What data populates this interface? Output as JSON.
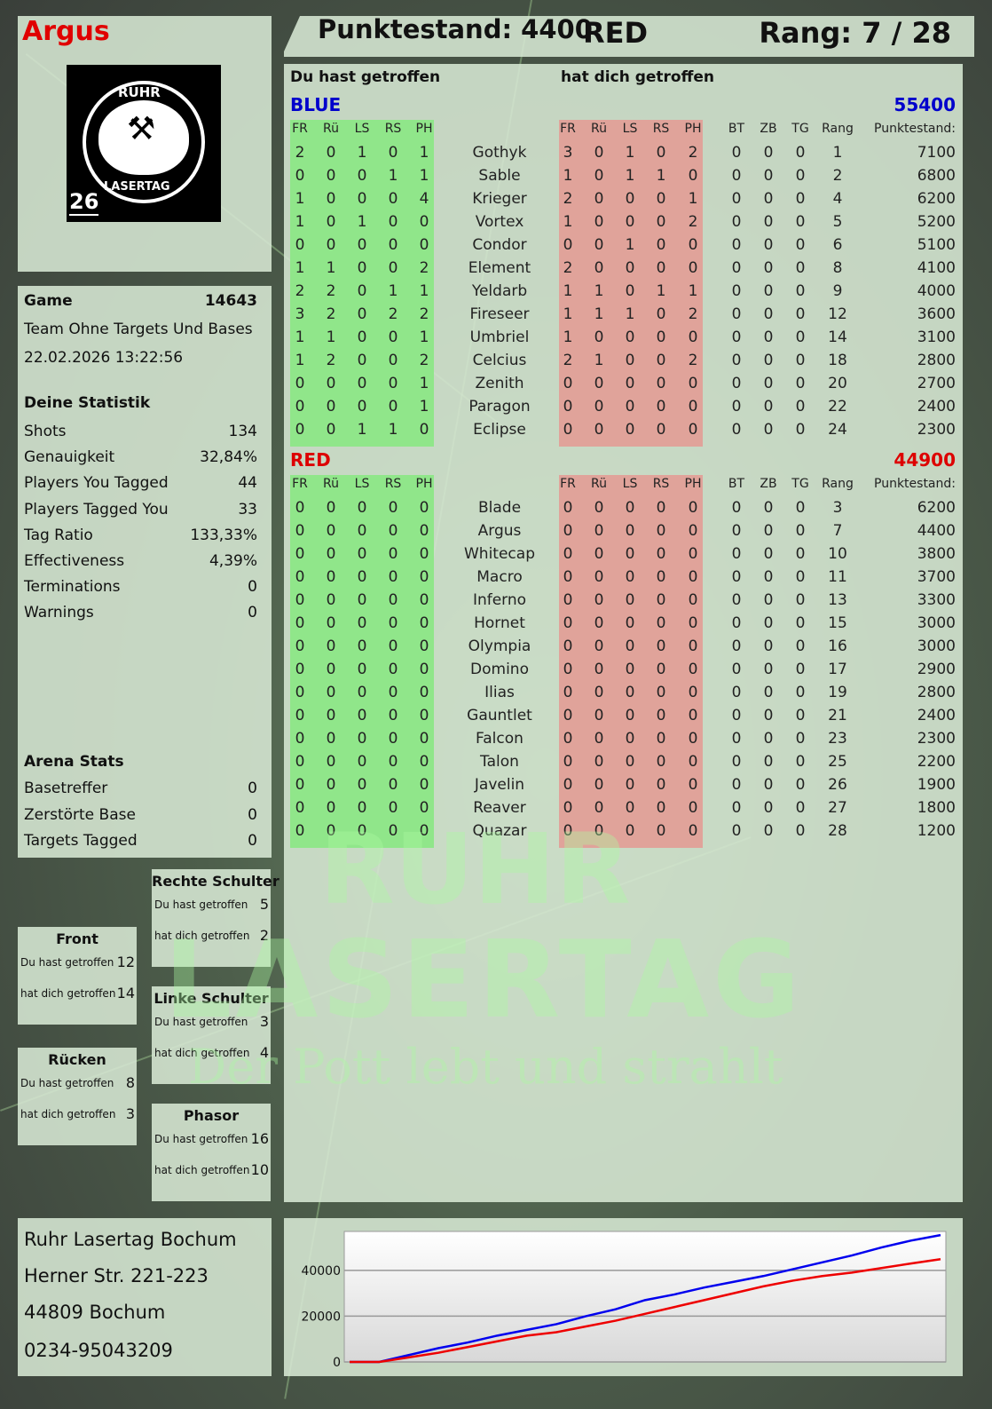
{
  "header": {
    "player_name": "Argus",
    "score_label": "Punktestand: 4400",
    "team": "RED",
    "rank_label": "Rang: 7 / 28"
  },
  "logo": {
    "text_top": "RUHR",
    "text_bottom": "LASERTAG",
    "number": "26"
  },
  "watermark": {
    "line1": "RUHR",
    "line2": "LASERTAG",
    "line3": "Der Pott lebt und strahlt"
  },
  "game": {
    "label": "Game",
    "id": "14643",
    "mode": "Team Ohne Targets Und Bases",
    "datetime": "22.02.2026 13:22:56"
  },
  "stats": {
    "title": "Deine Statistik",
    "items": [
      {
        "label": "Shots",
        "value": "134"
      },
      {
        "label": "Genauigkeit",
        "value": "32,84%"
      },
      {
        "label": "Players You Tagged",
        "value": "44"
      },
      {
        "label": "Players Tagged You",
        "value": "33"
      },
      {
        "label": "Tag Ratio",
        "value": "133,33%"
      },
      {
        "label": "Effectiveness",
        "value": "4,39%"
      },
      {
        "label": "Terminations",
        "value": "0"
      },
      {
        "label": "Warnings",
        "value": "0"
      }
    ]
  },
  "arena": {
    "title": "Arena Stats",
    "items": [
      {
        "label": "Basetreffer",
        "value": "0"
      },
      {
        "label": "Zerstörte Base",
        "value": "0"
      },
      {
        "label": "Targets Tagged",
        "value": "0"
      }
    ]
  },
  "hitzones": [
    {
      "title": "Rechte Schulter",
      "you_hit_label": "Du hast getroffen",
      "you_hit": "5",
      "hit_you_label": "hat dich getroffen",
      "hit_you": "2"
    },
    {
      "title": "Front",
      "you_hit_label": "Du hast getroffen",
      "you_hit": "12",
      "hit_you_label": "hat dich getroffen",
      "hit_you": "14"
    },
    {
      "title": "Linke Schulter",
      "you_hit_label": "Du hast getroffen",
      "you_hit": "3",
      "hit_you_label": "hat dich getroffen",
      "hit_you": "4"
    },
    {
      "title": "Rücken",
      "you_hit_label": "Du hast getroffen",
      "you_hit": "8",
      "hit_you_label": "hat dich getroffen",
      "hit_you": "3"
    },
    {
      "title": "Phasor",
      "you_hit_label": "Du hast getroffen",
      "you_hit": "16",
      "hit_you_label": "hat dich getroffen",
      "hit_you": "10"
    }
  ],
  "address": {
    "line1": "Ruhr Lasertag Bochum",
    "line2": "Herner Str. 221-223",
    "line3": "44809 Bochum",
    "line4": "0234-95043209"
  },
  "main": {
    "you_hit_header": "Du hast getroffen",
    "hit_you_header": "hat dich getroffen",
    "columns": {
      "hit": [
        "FR",
        "Rü",
        "LS",
        "RS",
        "PH"
      ],
      "extra": [
        "BT",
        "ZB",
        "TG",
        "Rang",
        "Punktestand:"
      ]
    },
    "colors": {
      "blue": "#0000cc",
      "red": "#dd0000",
      "you_hit_bg": "#90e68a",
      "hit_you_bg": "#e0a39a"
    },
    "teams": [
      {
        "name": "BLUE",
        "score": "55400",
        "color": "#0000cc",
        "players": [
          {
            "name": "Gothyk",
            "you_hit": [
              2,
              0,
              1,
              0,
              1
            ],
            "hit_you": [
              3,
              0,
              1,
              0,
              2
            ],
            "bt": 0,
            "zb": 0,
            "tg": 0,
            "rank": 1,
            "score": 7100
          },
          {
            "name": "Sable",
            "you_hit": [
              0,
              0,
              0,
              1,
              1
            ],
            "hit_you": [
              1,
              0,
              1,
              1,
              0
            ],
            "bt": 0,
            "zb": 0,
            "tg": 0,
            "rank": 2,
            "score": 6800
          },
          {
            "name": "Krieger",
            "you_hit": [
              1,
              0,
              0,
              0,
              4
            ],
            "hit_you": [
              2,
              0,
              0,
              0,
              1
            ],
            "bt": 0,
            "zb": 0,
            "tg": 0,
            "rank": 4,
            "score": 6200
          },
          {
            "name": "Vortex",
            "you_hit": [
              1,
              0,
              1,
              0,
              0
            ],
            "hit_you": [
              1,
              0,
              0,
              0,
              2
            ],
            "bt": 0,
            "zb": 0,
            "tg": 0,
            "rank": 5,
            "score": 5200
          },
          {
            "name": "Condor",
            "you_hit": [
              0,
              0,
              0,
              0,
              0
            ],
            "hit_you": [
              0,
              0,
              1,
              0,
              0
            ],
            "bt": 0,
            "zb": 0,
            "tg": 0,
            "rank": 6,
            "score": 5100
          },
          {
            "name": "Element",
            "you_hit": [
              1,
              1,
              0,
              0,
              2
            ],
            "hit_you": [
              2,
              0,
              0,
              0,
              0
            ],
            "bt": 0,
            "zb": 0,
            "tg": 0,
            "rank": 8,
            "score": 4100
          },
          {
            "name": "Yeldarb",
            "you_hit": [
              2,
              2,
              0,
              1,
              1
            ],
            "hit_you": [
              1,
              1,
              0,
              1,
              1
            ],
            "bt": 0,
            "zb": 0,
            "tg": 0,
            "rank": 9,
            "score": 4000
          },
          {
            "name": "Fireseer",
            "you_hit": [
              3,
              2,
              0,
              2,
              2
            ],
            "hit_you": [
              1,
              1,
              1,
              0,
              2
            ],
            "bt": 0,
            "zb": 0,
            "tg": 0,
            "rank": 12,
            "score": 3600
          },
          {
            "name": "Umbriel",
            "you_hit": [
              1,
              1,
              0,
              0,
              1
            ],
            "hit_you": [
              1,
              0,
              0,
              0,
              0
            ],
            "bt": 0,
            "zb": 0,
            "tg": 0,
            "rank": 14,
            "score": 3100
          },
          {
            "name": "Celcius",
            "you_hit": [
              1,
              2,
              0,
              0,
              2
            ],
            "hit_you": [
              2,
              1,
              0,
              0,
              2
            ],
            "bt": 0,
            "zb": 0,
            "tg": 0,
            "rank": 18,
            "score": 2800
          },
          {
            "name": "Zenith",
            "you_hit": [
              0,
              0,
              0,
              0,
              1
            ],
            "hit_you": [
              0,
              0,
              0,
              0,
              0
            ],
            "bt": 0,
            "zb": 0,
            "tg": 0,
            "rank": 20,
            "score": 2700
          },
          {
            "name": "Paragon",
            "you_hit": [
              0,
              0,
              0,
              0,
              1
            ],
            "hit_you": [
              0,
              0,
              0,
              0,
              0
            ],
            "bt": 0,
            "zb": 0,
            "tg": 0,
            "rank": 22,
            "score": 2400
          },
          {
            "name": "Eclipse",
            "you_hit": [
              0,
              0,
              1,
              1,
              0
            ],
            "hit_you": [
              0,
              0,
              0,
              0,
              0
            ],
            "bt": 0,
            "zb": 0,
            "tg": 0,
            "rank": 24,
            "score": 2300
          }
        ]
      },
      {
        "name": "RED",
        "score": "44900",
        "color": "#dd0000",
        "players": [
          {
            "name": "Blade",
            "you_hit": [
              0,
              0,
              0,
              0,
              0
            ],
            "hit_you": [
              0,
              0,
              0,
              0,
              0
            ],
            "bt": 0,
            "zb": 0,
            "tg": 0,
            "rank": 3,
            "score": 6200
          },
          {
            "name": "Argus",
            "you_hit": [
              0,
              0,
              0,
              0,
              0
            ],
            "hit_you": [
              0,
              0,
              0,
              0,
              0
            ],
            "bt": 0,
            "zb": 0,
            "tg": 0,
            "rank": 7,
            "score": 4400
          },
          {
            "name": "Whitecap",
            "you_hit": [
              0,
              0,
              0,
              0,
              0
            ],
            "hit_you": [
              0,
              0,
              0,
              0,
              0
            ],
            "bt": 0,
            "zb": 0,
            "tg": 0,
            "rank": 10,
            "score": 3800
          },
          {
            "name": "Macro",
            "you_hit": [
              0,
              0,
              0,
              0,
              0
            ],
            "hit_you": [
              0,
              0,
              0,
              0,
              0
            ],
            "bt": 0,
            "zb": 0,
            "tg": 0,
            "rank": 11,
            "score": 3700
          },
          {
            "name": "Inferno",
            "you_hit": [
              0,
              0,
              0,
              0,
              0
            ],
            "hit_you": [
              0,
              0,
              0,
              0,
              0
            ],
            "bt": 0,
            "zb": 0,
            "tg": 0,
            "rank": 13,
            "score": 3300
          },
          {
            "name": "Hornet",
            "you_hit": [
              0,
              0,
              0,
              0,
              0
            ],
            "hit_you": [
              0,
              0,
              0,
              0,
              0
            ],
            "bt": 0,
            "zb": 0,
            "tg": 0,
            "rank": 15,
            "score": 3000
          },
          {
            "name": "Olympia",
            "you_hit": [
              0,
              0,
              0,
              0,
              0
            ],
            "hit_you": [
              0,
              0,
              0,
              0,
              0
            ],
            "bt": 0,
            "zb": 0,
            "tg": 0,
            "rank": 16,
            "score": 3000
          },
          {
            "name": "Domino",
            "you_hit": [
              0,
              0,
              0,
              0,
              0
            ],
            "hit_you": [
              0,
              0,
              0,
              0,
              0
            ],
            "bt": 0,
            "zb": 0,
            "tg": 0,
            "rank": 17,
            "score": 2900
          },
          {
            "name": "Ilias",
            "you_hit": [
              0,
              0,
              0,
              0,
              0
            ],
            "hit_you": [
              0,
              0,
              0,
              0,
              0
            ],
            "bt": 0,
            "zb": 0,
            "tg": 0,
            "rank": 19,
            "score": 2800
          },
          {
            "name": "Gauntlet",
            "you_hit": [
              0,
              0,
              0,
              0,
              0
            ],
            "hit_you": [
              0,
              0,
              0,
              0,
              0
            ],
            "bt": 0,
            "zb": 0,
            "tg": 0,
            "rank": 21,
            "score": 2400
          },
          {
            "name": "Falcon",
            "you_hit": [
              0,
              0,
              0,
              0,
              0
            ],
            "hit_you": [
              0,
              0,
              0,
              0,
              0
            ],
            "bt": 0,
            "zb": 0,
            "tg": 0,
            "rank": 23,
            "score": 2300
          },
          {
            "name": "Talon",
            "you_hit": [
              0,
              0,
              0,
              0,
              0
            ],
            "hit_you": [
              0,
              0,
              0,
              0,
              0
            ],
            "bt": 0,
            "zb": 0,
            "tg": 0,
            "rank": 25,
            "score": 2200
          },
          {
            "name": "Javelin",
            "you_hit": [
              0,
              0,
              0,
              0,
              0
            ],
            "hit_you": [
              0,
              0,
              0,
              0,
              0
            ],
            "bt": 0,
            "zb": 0,
            "tg": 0,
            "rank": 26,
            "score": 1900
          },
          {
            "name": "Reaver",
            "you_hit": [
              0,
              0,
              0,
              0,
              0
            ],
            "hit_you": [
              0,
              0,
              0,
              0,
              0
            ],
            "bt": 0,
            "zb": 0,
            "tg": 0,
            "rank": 27,
            "score": 1800
          },
          {
            "name": "Quazar",
            "you_hit": [
              0,
              0,
              0,
              0,
              0
            ],
            "hit_you": [
              0,
              0,
              0,
              0,
              0
            ],
            "bt": 0,
            "zb": 0,
            "tg": 0,
            "rank": 28,
            "score": 1200
          }
        ]
      }
    ]
  },
  "chart_data": {
    "type": "line",
    "ylim": [
      0,
      57000
    ],
    "yticks": [
      "0",
      "20000",
      "40000"
    ],
    "grid": true,
    "series": [
      {
        "color": "#0000ee",
        "values": [
          0,
          0,
          3000,
          6000,
          8500,
          11500,
          14000,
          16500,
          20000,
          23000,
          27000,
          29500,
          32500,
          35000,
          37500,
          40500,
          43500,
          46500,
          50000,
          53000,
          55400
        ]
      },
      {
        "color": "#ee0000",
        "values": [
          0,
          0,
          2000,
          4000,
          6500,
          9000,
          11500,
          13000,
          15500,
          18000,
          21000,
          24000,
          27000,
          30000,
          33000,
          35500,
          37500,
          39000,
          41000,
          43000,
          44900
        ]
      }
    ]
  }
}
